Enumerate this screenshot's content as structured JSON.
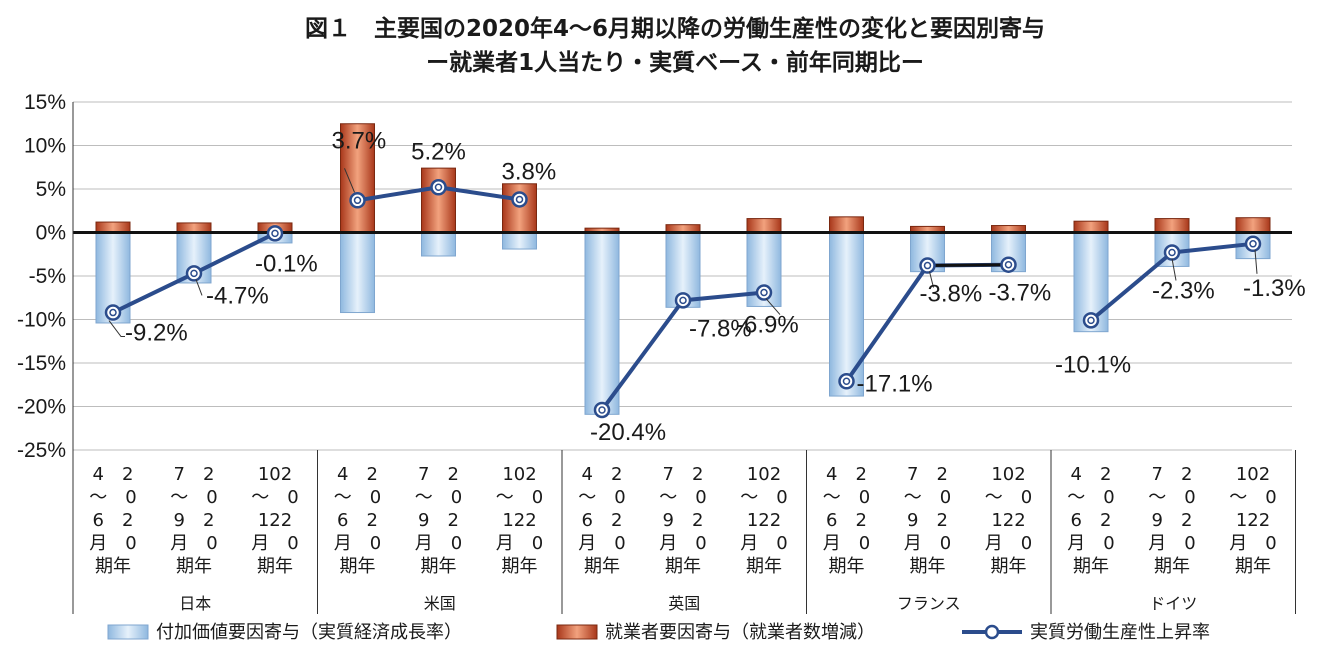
{
  "chart_data": {
    "type": "bar",
    "title": "図１　主要国の2020年4〜6月期以降の労働生産性の変化と要因別寄与",
    "subtitle": "ー就業者1人当たり・実質ベース・前年同期比ー",
    "groups": [
      "日本",
      "米国",
      "英国",
      "フランス",
      "ドイツ"
    ],
    "period_labels": [
      [
        "4　2",
        "〜　0",
        "6　2",
        "月　0",
        "期年"
      ],
      [
        "7　2",
        "〜　0",
        "9　2",
        "月　0",
        "期年"
      ],
      [
        "102",
        "〜　0",
        "122",
        "月　0",
        "期年"
      ]
    ],
    "ylim": [
      -25,
      15
    ],
    "yticks": [
      "15%",
      "10%",
      "5%",
      "0%",
      "-5%",
      "-10%",
      "-15%",
      "-20%",
      "-25%"
    ],
    "ytick_values": [
      15,
      10,
      5,
      0,
      -5,
      -10,
      -15,
      -20,
      -25
    ],
    "grid": true,
    "legend_position": "bottom",
    "series": [
      {
        "name": "付加価値要因寄与（実質経済成長率）",
        "kind": "bar",
        "color": "#a9cbe8",
        "values": [
          -10.4,
          -5.8,
          -1.2,
          -9.2,
          -2.7,
          -1.9,
          -20.9,
          -8.6,
          -8.5,
          -18.8,
          -4.5,
          -4.5,
          -11.4,
          -3.9,
          -3.0
        ]
      },
      {
        "name": "就業者要因寄与（就業者数増減）",
        "kind": "bar",
        "color": "#c4552b",
        "values": [
          1.2,
          1.1,
          1.1,
          12.5,
          7.4,
          5.6,
          0.5,
          0.9,
          1.6,
          1.8,
          0.7,
          0.8,
          1.3,
          1.6,
          1.7
        ]
      },
      {
        "name": "実質労働生産性上昇率",
        "kind": "line",
        "color": "#2b4c8c",
        "values": [
          -9.2,
          -4.7,
          -0.1,
          3.7,
          5.2,
          3.8,
          -20.4,
          -7.8,
          -6.9,
          -17.1,
          -3.8,
          -3.7,
          -10.1,
          -2.3,
          -1.3
        ],
        "labels": [
          "-9.2%",
          "-4.7%",
          "-0.1%",
          "3.7%",
          "5.2%",
          "3.8%",
          "-20.4%",
          "-7.8%",
          "-6.9%",
          "-17.1%",
          "-3.8%",
          "-3.7%",
          "-10.1%",
          "-2.3%",
          "-1.3%"
        ]
      }
    ]
  }
}
